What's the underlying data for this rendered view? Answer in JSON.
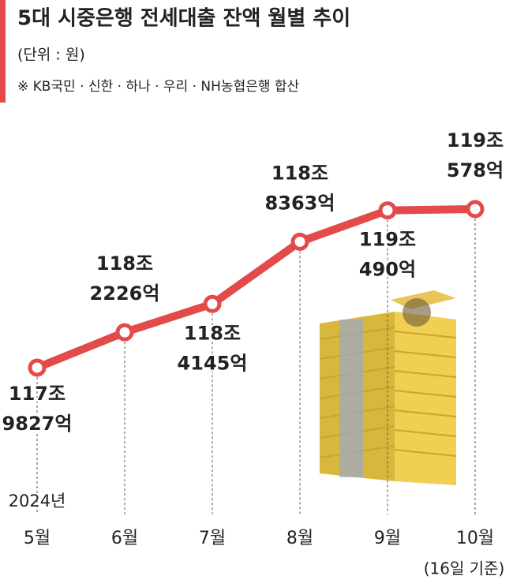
{
  "chart_data": {
    "type": "line",
    "title": "5대 시중은행 전세대출 잔액 월별 추이",
    "subtitle": "(단위 : 원)",
    "note": "※ KB국민 · 신한 · 하나 · 우리 · NH농협은행 합산",
    "year_label": "2024년",
    "last_note": "(16일 기준)",
    "categories": [
      "5월",
      "6월",
      "7월",
      "8월",
      "9월",
      "10월"
    ],
    "values": [
      1179827,
      1182226,
      1184145,
      1188363,
      1190490,
      1190578
    ],
    "value_labels": [
      [
        "117조",
        "9827억"
      ],
      [
        "118조",
        "2226억"
      ],
      [
        "118조",
        "4145억"
      ],
      [
        "118조",
        "8363억"
      ],
      [
        "119조",
        "490억"
      ],
      [
        "119조",
        "578억"
      ]
    ],
    "color": "#e24b4a"
  }
}
